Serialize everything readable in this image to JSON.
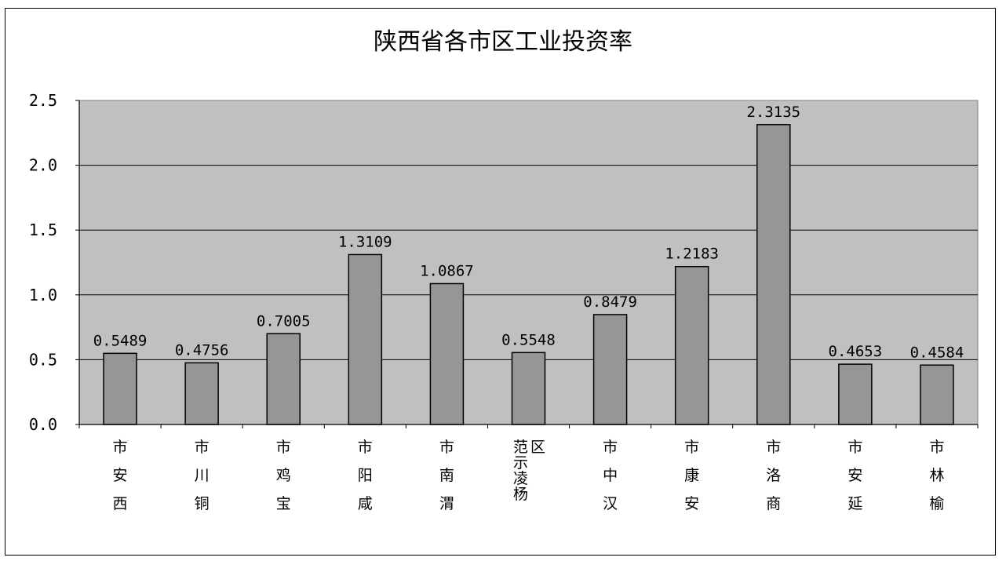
{
  "chart_data": {
    "type": "bar",
    "title": "陕西省各市区工业投资率",
    "xlabel": "",
    "ylabel": "",
    "ylim": [
      0,
      2.5
    ],
    "yticks": [
      "0.0",
      "0.5",
      "1.0",
      "1.5",
      "2.0",
      "2.5"
    ],
    "grid": true,
    "categories": [
      "西安市",
      "铜川市",
      "宝鸡市",
      "咸阳市",
      "渭南市",
      "杨凌示范区",
      "汉中市",
      "安康市",
      "商洛市",
      "延安市",
      "榆林市"
    ],
    "values": [
      0.5489,
      0.4756,
      0.7005,
      1.3109,
      1.0867,
      0.5548,
      0.8479,
      1.2183,
      2.3135,
      0.4653,
      0.4584
    ],
    "data_labels": [
      "0.5489",
      "0.4756",
      "0.7005",
      "1.3109",
      "1.0867",
      "0.5548",
      "0.8479",
      "1.2183",
      "2.3135",
      "0.4653",
      "0.4584"
    ],
    "colors": {
      "plot_background": "#c0c0c0",
      "bar_fill": "#969696",
      "bar_stroke": "#000000",
      "gridline": "#000000"
    }
  }
}
